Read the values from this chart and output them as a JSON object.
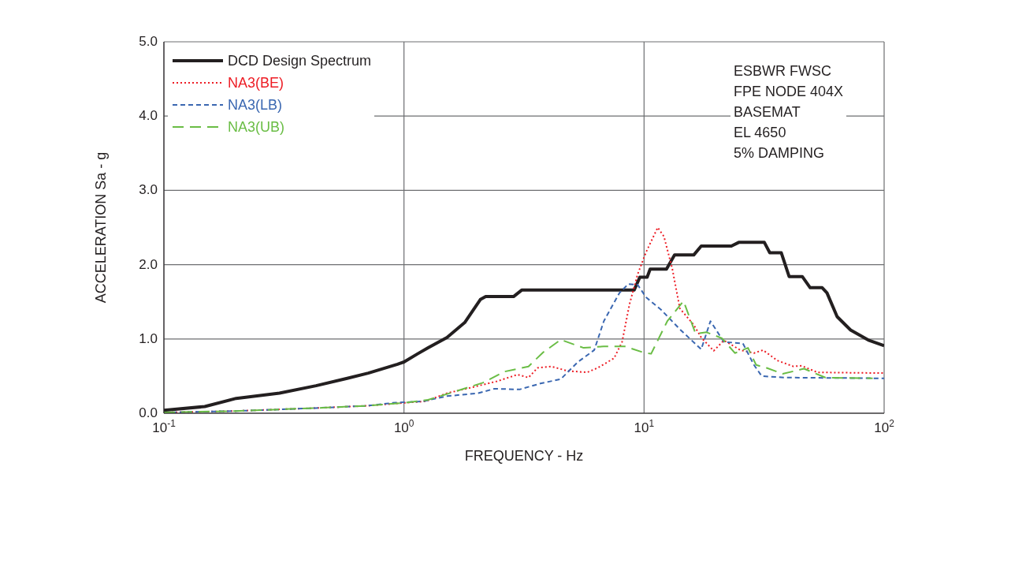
{
  "chart_data": {
    "type": "line",
    "xlabel": "FREQUENCY - Hz",
    "ylabel": "ACCELERATION Sa - g",
    "log": "x",
    "grid": true,
    "legend": "top left",
    "marker": "none",
    "xlim": [
      0.1,
      100
    ],
    "xticks": [
      {
        "value": 0.1,
        "label": "10$^{-1}$"
      },
      {
        "value": 1,
        "label": "10$^{0}$"
      },
      {
        "value": 10,
        "label": "10$^{1}$"
      },
      {
        "value": 100,
        "label": "10$^{2}$"
      }
    ],
    "ylim": [
      0,
      5
    ],
    "yticks": [
      {
        "value": 0,
        "label": "0.0"
      },
      {
        "value": 1,
        "label": "1.0"
      },
      {
        "value": 2,
        "label": "2.0"
      },
      {
        "value": 3,
        "label": "3.0"
      },
      {
        "value": 4,
        "label": "4.0"
      },
      {
        "value": 5,
        "label": "5.0"
      }
    ],
    "annotations": [
      "ESBWR FWSC",
      "FPE NODE 404X",
      "BASEMAT",
      "EL 4650",
      "5% DAMPING"
    ],
    "series": [
      {
        "name": "DCD Design Spectrum",
        "color": "#231f20",
        "line_style": "solid",
        "x": [
          0.1,
          0.148,
          0.2,
          0.303,
          0.43,
          0.58,
          0.71,
          0.94,
          1.0,
          1.14,
          1.26,
          1.51,
          1.79,
          2.08,
          2.19,
          2.86,
          3.1,
          9.1,
          9.6,
          10.3,
          10.6,
          12.4,
          13.4,
          16.1,
          17.3,
          23.1,
          24.8,
          31.7,
          33.4,
          37.3,
          40.2,
          45.6,
          49.2,
          55.2,
          57.8,
          63.7,
          72.5,
          86.6,
          100
        ],
        "values": [
          0.04,
          0.09,
          0.2,
          0.27,
          0.37,
          0.47,
          0.54,
          0.66,
          0.69,
          0.8,
          0.88,
          1.02,
          1.22,
          1.53,
          1.57,
          1.57,
          1.66,
          1.66,
          1.83,
          1.83,
          1.94,
          1.94,
          2.13,
          2.13,
          2.25,
          2.25,
          2.3,
          2.3,
          2.16,
          2.16,
          1.84,
          1.84,
          1.69,
          1.69,
          1.62,
          1.3,
          1.12,
          0.98,
          0.91
        ]
      },
      {
        "name": "NA3(BE)",
        "color": "#ed1c24",
        "line_style": "dotted",
        "x": [
          0.1,
          0.2,
          0.43,
          0.7,
          1.0,
          1.23,
          1.51,
          1.93,
          2.44,
          2.97,
          3.3,
          3.6,
          4.1,
          4.8,
          5.8,
          6.4,
          7.5,
          8.1,
          8.7,
          9.4,
          10.2,
          11.4,
          12.1,
          13.1,
          14.1,
          16.1,
          17.3,
          19.5,
          21.5,
          25.2,
          28.7,
          31.3,
          35.9,
          41.9,
          45.3,
          52.7,
          100
        ],
        "values": [
          0.01,
          0.03,
          0.07,
          0.1,
          0.14,
          0.16,
          0.27,
          0.35,
          0.43,
          0.52,
          0.48,
          0.61,
          0.63,
          0.57,
          0.55,
          0.61,
          0.74,
          0.96,
          1.47,
          1.87,
          2.17,
          2.5,
          2.38,
          1.95,
          1.41,
          1.19,
          1.02,
          0.84,
          0.98,
          0.85,
          0.81,
          0.85,
          0.71,
          0.63,
          0.64,
          0.55,
          0.54
        ]
      },
      {
        "name": "NA3(LB)",
        "color": "#3a67b1",
        "line_style": "dashed",
        "x": [
          0.1,
          0.2,
          0.43,
          0.7,
          0.9,
          1.2,
          1.51,
          2.04,
          2.38,
          3.03,
          3.7,
          4.5,
          5.3,
          6.2,
          6.8,
          7.9,
          8.6,
          9.4,
          10.2,
          11.8,
          14.1,
          17.3,
          18.9,
          21.5,
          25.8,
          28.7,
          30.9,
          38.8,
          100
        ],
        "values": [
          0.01,
          0.03,
          0.07,
          0.1,
          0.14,
          0.16,
          0.23,
          0.27,
          0.33,
          0.32,
          0.4,
          0.46,
          0.69,
          0.85,
          1.24,
          1.62,
          1.74,
          1.73,
          1.56,
          1.39,
          1.13,
          0.86,
          1.24,
          0.96,
          0.94,
          0.65,
          0.5,
          0.48,
          0.47
        ]
      },
      {
        "name": "NA3(UB)",
        "color": "#6abd45",
        "line_style": "long_dashed",
        "x": [
          0.1,
          0.2,
          0.43,
          0.7,
          1.0,
          1.26,
          1.66,
          2.13,
          2.62,
          3.3,
          3.8,
          4.5,
          5.6,
          6.8,
          8.3,
          9.9,
          10.7,
          12.5,
          14.6,
          16.4,
          18.2,
          21.1,
          23.9,
          27.1,
          29.3,
          32.4,
          37.8,
          46.4,
          56.9,
          89.6
        ],
        "values": [
          0.01,
          0.03,
          0.07,
          0.1,
          0.14,
          0.18,
          0.3,
          0.41,
          0.56,
          0.63,
          0.82,
          0.99,
          0.88,
          0.9,
          0.9,
          0.82,
          0.8,
          1.24,
          1.51,
          1.07,
          1.09,
          1.01,
          0.81,
          0.88,
          0.65,
          0.61,
          0.53,
          0.6,
          0.48,
          0.47
        ]
      }
    ]
  }
}
